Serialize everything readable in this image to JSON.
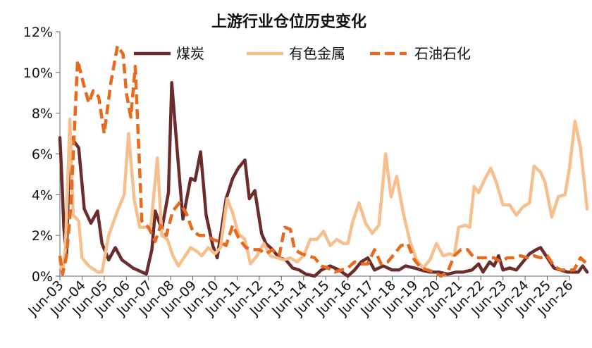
{
  "chart_data": {
    "type": "line",
    "title": "上游行业仓位历史变化",
    "xlabel": "",
    "ylabel": "",
    "ylim": [
      0,
      12
    ],
    "y_ticks": [
      "0%",
      "2%",
      "4%",
      "6%",
      "8%",
      "10%",
      "12%"
    ],
    "x_ticks": [
      "Jun-03",
      "Jun-04",
      "Jun-05",
      "Jun-06",
      "Jun-07",
      "Jun-08",
      "Jun-09",
      "Jun-10",
      "Jun-11",
      "Jun-12",
      "Jun-13",
      "Jun-14",
      "Jun-15",
      "Jun-16",
      "Jun-17",
      "Jun-18",
      "Jun-19",
      "Jun-20",
      "Jun-21",
      "Jun-22",
      "Jun-23",
      "Jun-24",
      "Jun-25",
      "Jun-26"
    ],
    "legend_position": "top",
    "grid": false,
    "series": [
      {
        "name": "煤炭",
        "color": "#6b2c2c",
        "style": "solid",
        "points": [
          [
            0,
            6.8
          ],
          [
            0.08,
            5.0
          ],
          [
            0.18,
            2.3
          ],
          [
            0.3,
            1.1
          ],
          [
            0.45,
            6.9
          ],
          [
            0.65,
            6.6
          ],
          [
            0.85,
            6.3
          ],
          [
            1.1,
            3.3
          ],
          [
            1.4,
            2.6
          ],
          [
            1.7,
            3.2
          ],
          [
            1.9,
            1.6
          ],
          [
            2.2,
            0.8
          ],
          [
            2.5,
            1.4
          ],
          [
            2.8,
            0.8
          ],
          [
            3.3,
            0.4
          ],
          [
            3.7,
            0.2
          ],
          [
            3.9,
            0.1
          ],
          [
            4.15,
            1.3
          ],
          [
            4.3,
            3.2
          ],
          [
            4.6,
            2.3
          ],
          [
            4.9,
            4.1
          ],
          [
            5.05,
            9.5
          ],
          [
            5.3,
            6.1
          ],
          [
            5.55,
            2.8
          ],
          [
            5.9,
            4.8
          ],
          [
            6.1,
            4.7
          ],
          [
            6.35,
            6.1
          ],
          [
            6.6,
            3.0
          ],
          [
            6.9,
            1.5
          ],
          [
            7.1,
            0.9
          ],
          [
            7.5,
            3.8
          ],
          [
            7.8,
            4.8
          ],
          [
            8.05,
            5.3
          ],
          [
            8.35,
            5.7
          ],
          [
            8.55,
            3.8
          ],
          [
            8.8,
            4.2
          ],
          [
            9.1,
            2.1
          ],
          [
            9.3,
            1.6
          ],
          [
            9.6,
            1.3
          ],
          [
            9.9,
            0.9
          ],
          [
            10.2,
            0.8
          ],
          [
            10.5,
            0.4
          ],
          [
            10.8,
            0.3
          ],
          [
            11.1,
            0.1
          ],
          [
            11.5,
            0.0
          ],
          [
            11.8,
            0.3
          ],
          [
            12.2,
            0.5
          ],
          [
            12.6,
            0.3
          ],
          [
            13.0,
            0.0
          ],
          [
            13.3,
            0.3
          ],
          [
            13.6,
            0.7
          ],
          [
            13.9,
            0.9
          ],
          [
            14.2,
            0.3
          ],
          [
            14.6,
            0.5
          ],
          [
            15.0,
            0.3
          ],
          [
            15.3,
            0.3
          ],
          [
            15.6,
            0.5
          ],
          [
            16.0,
            0.4
          ],
          [
            16.3,
            0.3
          ],
          [
            16.7,
            0.2
          ],
          [
            17.1,
            0.2
          ],
          [
            17.5,
            0.1
          ],
          [
            17.9,
            0.2
          ],
          [
            18.2,
            0.2
          ],
          [
            18.6,
            0.3
          ],
          [
            18.9,
            0.6
          ],
          [
            19.1,
            0.2
          ],
          [
            19.4,
            0.7
          ],
          [
            19.6,
            0.5
          ],
          [
            19.8,
            1.0
          ],
          [
            20.0,
            0.3
          ],
          [
            20.3,
            0.4
          ],
          [
            20.6,
            0.3
          ],
          [
            20.9,
            0.7
          ],
          [
            21.2,
            1.1
          ],
          [
            21.5,
            1.3
          ],
          [
            21.7,
            1.4
          ],
          [
            22.0,
            0.9
          ],
          [
            22.3,
            0.4
          ],
          [
            22.6,
            0.3
          ],
          [
            22.9,
            0.2
          ],
          [
            23.1,
            0.2
          ],
          [
            23.4,
            0.2
          ],
          [
            23.6,
            0.5
          ],
          [
            23.8,
            0.2
          ]
        ]
      },
      {
        "name": "有色金属",
        "color": "#f6c08e",
        "style": "solid",
        "points": [
          [
            0,
            0.8
          ],
          [
            0.12,
            0.1
          ],
          [
            0.25,
            1.4
          ],
          [
            0.45,
            7.7
          ],
          [
            0.6,
            3.0
          ],
          [
            0.85,
            2.7
          ],
          [
            1.0,
            0.9
          ],
          [
            1.3,
            0.5
          ],
          [
            1.7,
            0.2
          ],
          [
            1.9,
            0.2
          ],
          [
            2.2,
            2.0
          ],
          [
            2.6,
            3.2
          ],
          [
            2.9,
            4.0
          ],
          [
            3.1,
            7.0
          ],
          [
            3.35,
            3.8
          ],
          [
            3.6,
            2.4
          ],
          [
            3.9,
            2.4
          ],
          [
            4.1,
            2.4
          ],
          [
            4.4,
            5.8
          ],
          [
            4.6,
            2.0
          ],
          [
            4.85,
            1.8
          ],
          [
            5.1,
            1.0
          ],
          [
            5.35,
            0.5
          ],
          [
            5.6,
            0.9
          ],
          [
            5.9,
            1.4
          ],
          [
            6.2,
            1.2
          ],
          [
            6.4,
            1.0
          ],
          [
            6.7,
            1.4
          ],
          [
            7.0,
            1.1
          ],
          [
            7.25,
            1.4
          ],
          [
            7.55,
            3.8
          ],
          [
            7.8,
            3.1
          ],
          [
            8.05,
            2.1
          ],
          [
            8.35,
            1.8
          ],
          [
            8.6,
            0.6
          ],
          [
            8.9,
            1.0
          ],
          [
            9.2,
            1.6
          ],
          [
            9.5,
            1.0
          ],
          [
            9.8,
            0.9
          ],
          [
            10.1,
            0.8
          ],
          [
            10.4,
            0.9
          ],
          [
            10.7,
            0.7
          ],
          [
            11.0,
            1.0
          ],
          [
            11.3,
            1.8
          ],
          [
            11.6,
            1.8
          ],
          [
            11.9,
            2.2
          ],
          [
            12.2,
            1.5
          ],
          [
            12.5,
            1.8
          ],
          [
            12.8,
            1.6
          ],
          [
            13.0,
            1.6
          ],
          [
            13.2,
            2.6
          ],
          [
            13.5,
            3.6
          ],
          [
            13.8,
            2.6
          ],
          [
            14.1,
            2.1
          ],
          [
            14.4,
            2.5
          ],
          [
            14.7,
            6.0
          ],
          [
            14.95,
            3.9
          ],
          [
            15.2,
            4.9
          ],
          [
            15.5,
            3.1
          ],
          [
            15.8,
            1.7
          ],
          [
            16.1,
            0.8
          ],
          [
            16.4,
            0.4
          ],
          [
            16.7,
            0.8
          ],
          [
            17.0,
            1.6
          ],
          [
            17.3,
            1.0
          ],
          [
            17.6,
            1.1
          ],
          [
            17.8,
            1.0
          ],
          [
            18.0,
            2.4
          ],
          [
            18.3,
            2.5
          ],
          [
            18.5,
            2.4
          ],
          [
            18.7,
            4.4
          ],
          [
            18.9,
            4.1
          ],
          [
            19.2,
            4.8
          ],
          [
            19.45,
            5.3
          ],
          [
            19.7,
            4.6
          ],
          [
            20.0,
            3.5
          ],
          [
            20.3,
            3.5
          ],
          [
            20.6,
            3.0
          ],
          [
            20.9,
            3.4
          ],
          [
            21.2,
            3.6
          ],
          [
            21.4,
            5.4
          ],
          [
            21.7,
            5.1
          ],
          [
            21.9,
            4.6
          ],
          [
            22.2,
            2.9
          ],
          [
            22.5,
            3.9
          ],
          [
            22.8,
            4.0
          ],
          [
            23.0,
            5.3
          ],
          [
            23.25,
            7.6
          ],
          [
            23.5,
            6.3
          ],
          [
            23.8,
            3.3
          ]
        ]
      },
      {
        "name": "石油石化",
        "color": "#e66b1e",
        "style": "dashed",
        "points": [
          [
            0,
            1.0
          ],
          [
            0.12,
            0.1
          ],
          [
            0.3,
            1.0
          ],
          [
            0.5,
            3.5
          ],
          [
            0.8,
            10.6
          ],
          [
            1.1,
            9.3
          ],
          [
            1.3,
            8.5
          ],
          [
            1.5,
            9.1
          ],
          [
            1.75,
            8.8
          ],
          [
            2.0,
            7.0
          ],
          [
            2.3,
            9.5
          ],
          [
            2.6,
            11.3
          ],
          [
            2.85,
            10.9
          ],
          [
            3.0,
            9.0
          ],
          [
            3.2,
            7.8
          ],
          [
            3.4,
            10.3
          ],
          [
            3.7,
            2.7
          ],
          [
            4.0,
            2.4
          ],
          [
            4.3,
            1.7
          ],
          [
            4.55,
            2.5
          ],
          [
            4.8,
            2.0
          ],
          [
            5.1,
            3.2
          ],
          [
            5.4,
            3.6
          ],
          [
            5.7,
            3.1
          ],
          [
            6.0,
            2.2
          ],
          [
            6.3,
            2.0
          ],
          [
            6.6,
            2.0
          ],
          [
            6.9,
            1.8
          ],
          [
            7.2,
            1.7
          ],
          [
            7.5,
            1.5
          ],
          [
            7.8,
            2.5
          ],
          [
            8.1,
            1.8
          ],
          [
            8.4,
            1.4
          ],
          [
            8.7,
            1.3
          ],
          [
            9.0,
            1.3
          ],
          [
            9.3,
            1.1
          ],
          [
            9.6,
            1.3
          ],
          [
            9.9,
            1.0
          ],
          [
            10.15,
            2.4
          ],
          [
            10.4,
            2.3
          ],
          [
            10.6,
            1.3
          ],
          [
            10.9,
            1.1
          ],
          [
            11.2,
            1.0
          ],
          [
            11.5,
            0.9
          ],
          [
            11.8,
            0.5
          ],
          [
            12.1,
            0.4
          ],
          [
            12.4,
            0.2
          ],
          [
            12.7,
            0.3
          ],
          [
            13.0,
            0.4
          ],
          [
            13.3,
            0.7
          ],
          [
            13.6,
            0.6
          ],
          [
            13.9,
            0.6
          ],
          [
            14.2,
            1.3
          ],
          [
            14.5,
            0.6
          ],
          [
            14.8,
            0.7
          ],
          [
            15.1,
            1.1
          ],
          [
            15.4,
            1.5
          ],
          [
            15.7,
            1.6
          ],
          [
            16.0,
            0.8
          ],
          [
            16.3,
            0.4
          ],
          [
            16.6,
            0.3
          ],
          [
            16.9,
            0.2
          ],
          [
            17.2,
            0.0
          ],
          [
            17.5,
            0.2
          ],
          [
            17.8,
            1.0
          ],
          [
            18.1,
            1.3
          ],
          [
            18.4,
            1.3
          ],
          [
            18.7,
            0.9
          ],
          [
            19.0,
            0.9
          ],
          [
            19.3,
            0.9
          ],
          [
            19.6,
            0.9
          ],
          [
            19.9,
            0.7
          ],
          [
            20.2,
            0.9
          ],
          [
            20.5,
            0.9
          ],
          [
            20.8,
            1.0
          ],
          [
            21.1,
            0.9
          ],
          [
            21.4,
            1.0
          ],
          [
            21.7,
            0.9
          ],
          [
            22.0,
            1.0
          ],
          [
            22.3,
            0.5
          ],
          [
            22.6,
            0.3
          ],
          [
            22.9,
            0.3
          ],
          [
            23.2,
            0.3
          ],
          [
            23.5,
            0.9
          ],
          [
            23.8,
            0.6
          ]
        ]
      }
    ]
  }
}
